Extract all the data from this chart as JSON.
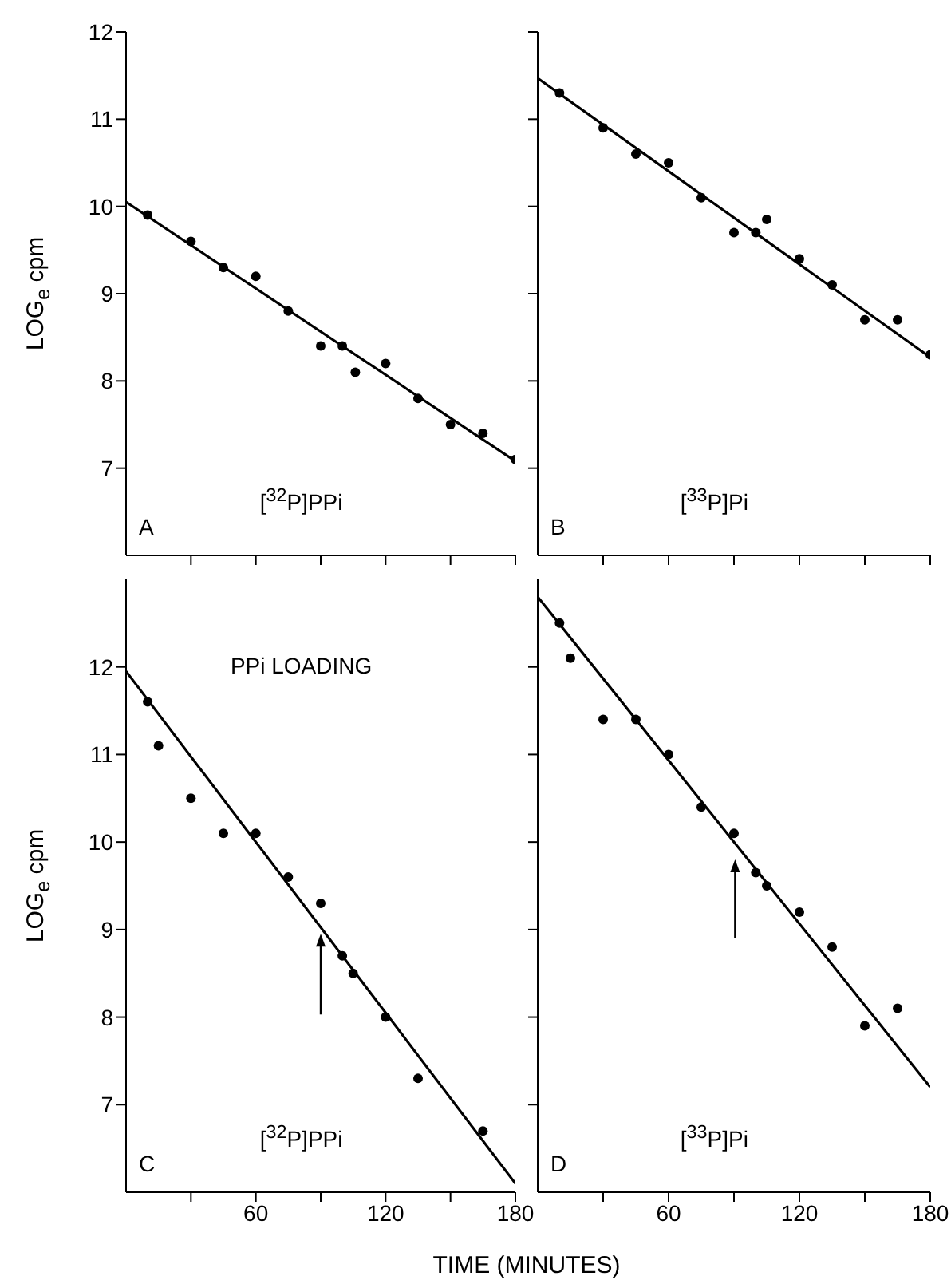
{
  "chart_data": [
    {
      "type": "scatter",
      "ylabel": "LOG$_{e}$ cpm",
      "annotations": [
        "A",
        "[$^{32}$P]PPi"
      ],
      "xlim": [
        0,
        180
      ],
      "ylim": [
        6,
        12
      ],
      "xticks": [
        30,
        60,
        90,
        120,
        150,
        180
      ],
      "yticks": [
        7,
        8,
        9,
        10,
        11,
        12
      ],
      "tick_labels": "y",
      "series": [
        {
          "marker": "circle",
          "color": "#000000",
          "x": [
            10,
            30,
            45,
            60,
            75,
            90,
            100,
            106,
            120,
            135,
            150,
            165,
            180
          ],
          "values": [
            9.9,
            9.6,
            9.3,
            9.2,
            8.8,
            8.4,
            8.4,
            8.1,
            8.2,
            7.8,
            7.5,
            7.4,
            7.1
          ]
        },
        {
          "type": "line",
          "marker": "none",
          "line_style": "solid",
          "color": "#000000",
          "x": [
            0,
            180
          ],
          "values": [
            10.05,
            7.08
          ]
        }
      ]
    },
    {
      "type": "scatter",
      "annotations": [
        "B",
        "[$^{33}$P]Pi"
      ],
      "xlim": [
        0,
        180
      ],
      "ylim": [
        6,
        12
      ],
      "xticks": [
        30,
        60,
        90,
        120,
        150,
        180
      ],
      "yticks": [
        7,
        8,
        9,
        10,
        11,
        12
      ],
      "tick_labels": false,
      "series": [
        {
          "marker": "circle",
          "color": "#000000",
          "x": [
            10,
            30,
            45,
            60,
            75,
            90,
            100,
            105,
            120,
            135,
            150,
            165,
            180
          ],
          "values": [
            11.3,
            10.9,
            10.6,
            10.5,
            10.1,
            9.7,
            9.7,
            9.85,
            9.4,
            9.1,
            8.7,
            8.7,
            8.3
          ]
        },
        {
          "type": "line",
          "marker": "none",
          "line_style": "solid",
          "color": "#000000",
          "x": [
            0,
            180
          ],
          "values": [
            11.47,
            8.27
          ]
        }
      ]
    },
    {
      "type": "scatter",
      "ylabel": "LOG$_{e}$ cpm",
      "xlabel": "TIME (MINUTES)",
      "annotations": [
        "C",
        "[$^{32}$P]PPi",
        "PPi LOADING"
      ],
      "xlim": [
        0,
        180
      ],
      "ylim": [
        6,
        13
      ],
      "xticks": [
        {
          "value": 30,
          "label": null
        },
        60,
        {
          "value": 90,
          "label": null
        },
        120,
        {
          "value": 150,
          "label": null
        },
        180
      ],
      "yticks": [
        7,
        8,
        9,
        10,
        11,
        12
      ],
      "series": [
        {
          "marker": "circle",
          "color": "#000000",
          "x": [
            10,
            15,
            30,
            45,
            60,
            75,
            90,
            100,
            105,
            120,
            135,
            165
          ],
          "values": [
            11.6,
            11.1,
            10.5,
            10.1,
            10.1,
            9.6,
            9.3,
            8.7,
            8.5,
            8.0,
            7.3,
            6.7
          ]
        },
        {
          "type": "line",
          "marker": "none",
          "line_style": "solid",
          "color": "#000000",
          "x": [
            0,
            180
          ],
          "values": [
            11.95,
            6.1
          ]
        }
      ]
    },
    {
      "type": "scatter",
      "annotations": [
        "D",
        "[$^{33}$P]Pi"
      ],
      "xlim": [
        0,
        180
      ],
      "ylim": [
        6,
        13
      ],
      "xticks": [
        {
          "value": 30,
          "label": null
        },
        60,
        {
          "value": 90,
          "label": null
        },
        120,
        {
          "value": 150,
          "label": null
        },
        180
      ],
      "yticks": [
        7,
        8,
        9,
        10,
        11,
        12
      ],
      "tick_labels": "x",
      "series": [
        {
          "marker": "circle",
          "color": "#000000",
          "x": [
            10,
            15,
            30,
            45,
            60,
            75,
            90,
            100,
            105,
            120,
            135,
            150,
            165
          ],
          "values": [
            12.5,
            12.1,
            11.4,
            11.4,
            11.0,
            10.4,
            10.1,
            9.65,
            9.5,
            9.2,
            8.8,
            7.9,
            8.1
          ]
        },
        {
          "type": "line",
          "marker": "none",
          "line_style": "solid",
          "color": "#000000",
          "x": [
            0,
            180
          ],
          "values": [
            12.8,
            7.2
          ]
        }
      ]
    }
  ]
}
